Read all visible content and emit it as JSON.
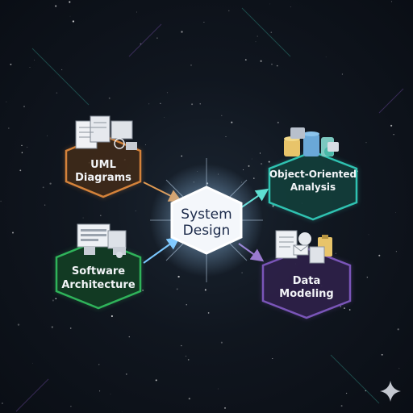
{
  "center": {
    "line1": "System",
    "line2": "Design"
  },
  "nodes": {
    "uml": {
      "line1": "UML",
      "line2": "Diagrams",
      "color": "#d4823a",
      "icon": "documents-icon"
    },
    "ooa": {
      "line1": "Object-Oriented",
      "line2": "Analysis",
      "color": "#2fc2b1",
      "icon": "database-cylinders-icon"
    },
    "arch": {
      "line1": "Software",
      "line2": "Architecture",
      "color": "#2fb35a",
      "icon": "monitor-windows-icon"
    },
    "data": {
      "line1": "Data",
      "line2": "Modeling",
      "color": "#7a55b8",
      "icon": "clipboard-files-icon"
    }
  },
  "colors": {
    "background": "#0c1119",
    "center_fill": "#f4f7fb",
    "center_glow": "#9fd2ff"
  },
  "watermark_icon": "sparkle-icon"
}
